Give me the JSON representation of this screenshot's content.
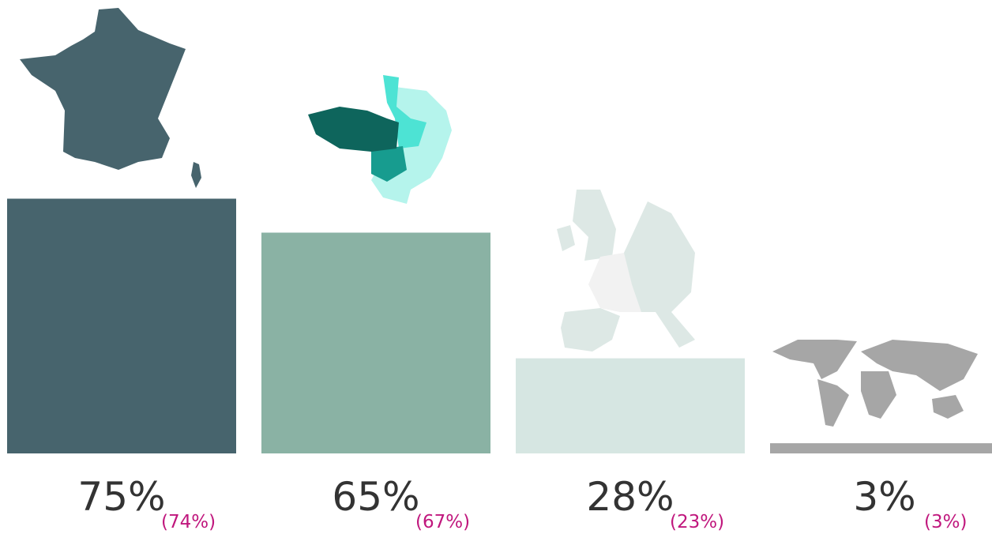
{
  "chart_data": {
    "type": "bar",
    "categories": [
      null,
      null,
      null,
      null
    ],
    "series": [
      {
        "values": [
          75,
          65,
          28,
          3
        ],
        "value_labels": [
          "75%",
          "65%",
          "28%",
          "3%"
        ],
        "colors": [
          "#47646d",
          "#8ab2a4",
          "#d6e6e2",
          "#a6a6a6"
        ]
      },
      {
        "values": [
          74,
          67,
          23,
          3
        ],
        "value_labels": [
          "(74%)",
          "(67%)",
          "(23%)",
          "(3%)"
        ],
        "color": "#c0177d"
      }
    ],
    "ylim": [
      0,
      100
    ]
  }
}
